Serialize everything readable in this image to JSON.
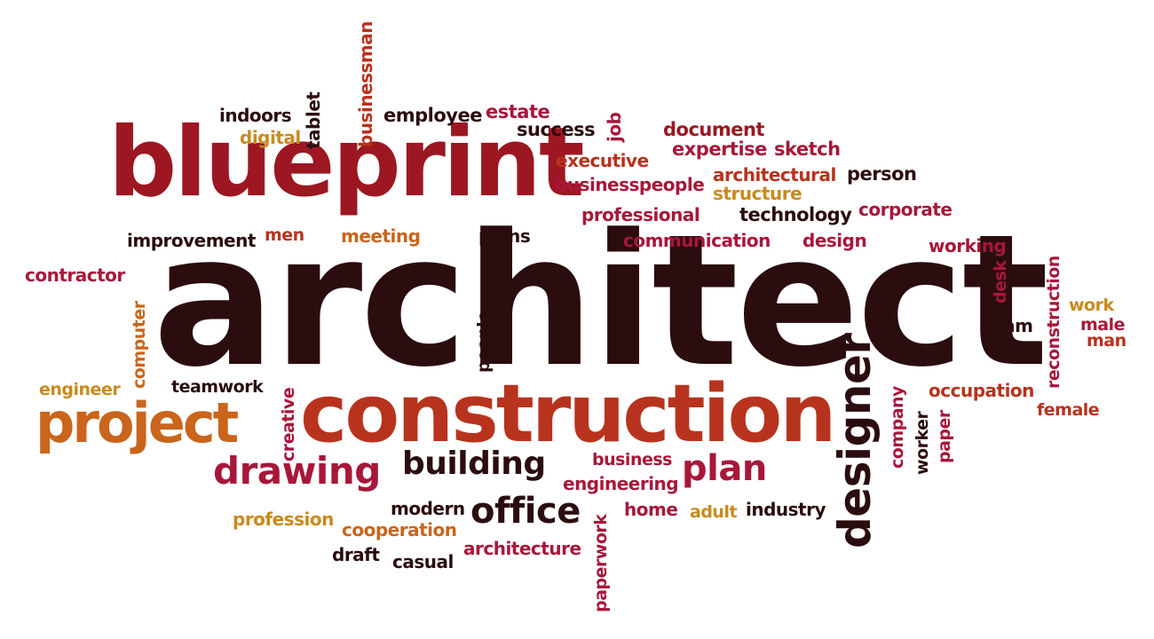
{
  "palette": {
    "dark": "#2b0d0f",
    "maroon": "#9c1722",
    "crimson": "#a8173a",
    "rust": "#b8331d",
    "orange": "#c9651c",
    "gold": "#c98a1d"
  },
  "words": [
    {
      "text": "architect",
      "color": "dark"
    },
    {
      "text": "blueprint",
      "color": "maroon"
    },
    {
      "text": "construction",
      "color": "rust"
    },
    {
      "text": "project",
      "color": "orange"
    },
    {
      "text": "designer",
      "color": "dark"
    },
    {
      "text": "drawing",
      "color": "crimson"
    },
    {
      "text": "building",
      "color": "dark"
    },
    {
      "text": "office",
      "color": "dark"
    },
    {
      "text": "plan",
      "color": "crimson"
    },
    {
      "text": "indoors",
      "color": "dark"
    },
    {
      "text": "digital",
      "color": "gold"
    },
    {
      "text": "tablet",
      "color": "dark"
    },
    {
      "text": "businessman",
      "color": "rust"
    },
    {
      "text": "employee",
      "color": "dark"
    },
    {
      "text": "estate",
      "color": "crimson"
    },
    {
      "text": "success",
      "color": "dark"
    },
    {
      "text": "job",
      "color": "crimson"
    },
    {
      "text": "document",
      "color": "maroon"
    },
    {
      "text": "expertise",
      "color": "crimson"
    },
    {
      "text": "sketch",
      "color": "crimson"
    },
    {
      "text": "executive",
      "color": "rust"
    },
    {
      "text": "architectural",
      "color": "rust"
    },
    {
      "text": "person",
      "color": "dark"
    },
    {
      "text": "businesspeople",
      "color": "crimson"
    },
    {
      "text": "structure",
      "color": "gold"
    },
    {
      "text": "professional",
      "color": "crimson"
    },
    {
      "text": "technology",
      "color": "dark"
    },
    {
      "text": "corporate",
      "color": "crimson"
    },
    {
      "text": "improvement",
      "color": "dark"
    },
    {
      "text": "men",
      "color": "rust"
    },
    {
      "text": "meeting",
      "color": "orange"
    },
    {
      "text": "plans",
      "color": "dark"
    },
    {
      "text": "communication",
      "color": "crimson"
    },
    {
      "text": "design",
      "color": "crimson"
    },
    {
      "text": "working",
      "color": "crimson"
    },
    {
      "text": "contractor",
      "color": "crimson"
    },
    {
      "text": "desk",
      "color": "crimson"
    },
    {
      "text": "reconstruction",
      "color": "crimson"
    },
    {
      "text": "computer",
      "color": "orange"
    },
    {
      "text": "people",
      "color": "dark"
    },
    {
      "text": "work",
      "color": "gold"
    },
    {
      "text": "team",
      "color": "dark"
    },
    {
      "text": "male",
      "color": "crimson"
    },
    {
      "text": "man",
      "color": "rust"
    },
    {
      "text": "engineer",
      "color": "gold"
    },
    {
      "text": "teamwork",
      "color": "dark"
    },
    {
      "text": "creative",
      "color": "crimson"
    },
    {
      "text": "company",
      "color": "crimson"
    },
    {
      "text": "occupation",
      "color": "rust"
    },
    {
      "text": "female",
      "color": "rust"
    },
    {
      "text": "worker",
      "color": "dark"
    },
    {
      "text": "paper",
      "color": "crimson"
    },
    {
      "text": "business",
      "color": "crimson"
    },
    {
      "text": "engineering",
      "color": "crimson"
    },
    {
      "text": "profession",
      "color": "gold"
    },
    {
      "text": "modern",
      "color": "dark"
    },
    {
      "text": "cooperation",
      "color": "orange"
    },
    {
      "text": "paperwork",
      "color": "crimson"
    },
    {
      "text": "home",
      "color": "crimson"
    },
    {
      "text": "adult",
      "color": "gold"
    },
    {
      "text": "industry",
      "color": "dark"
    },
    {
      "text": "draft",
      "color": "dark"
    },
    {
      "text": "casual",
      "color": "dark"
    },
    {
      "text": "architecture",
      "color": "crimson"
    }
  ]
}
